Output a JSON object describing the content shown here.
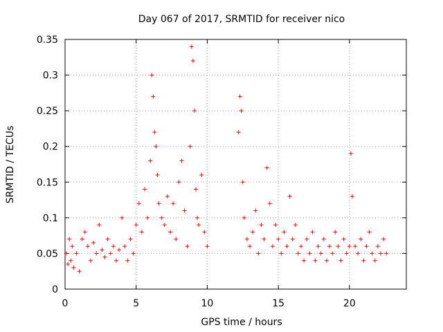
{
  "chart_data": {
    "type": "scatter",
    "title": "Day 067 of 2017, SRMTID for receiver nico",
    "xlabel": "GPS time / hours",
    "ylabel": "SRMTID / TECUs",
    "xlim": [
      0,
      24
    ],
    "ylim": [
      0,
      0.35
    ],
    "xticks": [
      0,
      5,
      10,
      15,
      20
    ],
    "xtick_labels": [
      "0",
      "5",
      "10",
      "15",
      "20"
    ],
    "yticks": [
      0,
      0.05,
      0.1,
      0.15,
      0.2,
      0.25,
      0.3,
      0.35
    ],
    "ytick_labels": [
      "0",
      "0.05",
      "0.1",
      "0.15",
      "0.2",
      "0.25",
      "0.3",
      "0.35"
    ],
    "grid": true,
    "marker": "+",
    "color": "#ff0000",
    "series": [
      {
        "name": "SRMTID",
        "x": [
          0.1,
          0.2,
          0.3,
          0.4,
          0.5,
          0.6,
          0.8,
          1.0,
          1.2,
          1.4,
          1.6,
          1.8,
          2.0,
          2.2,
          2.4,
          2.6,
          2.8,
          3.0,
          3.2,
          3.4,
          3.6,
          3.8,
          4.0,
          4.2,
          4.4,
          4.6,
          4.8,
          5.0,
          5.2,
          5.4,
          5.6,
          5.8,
          6.0,
          6.1,
          6.2,
          6.3,
          6.4,
          6.5,
          6.6,
          6.8,
          7.0,
          7.2,
          7.4,
          7.6,
          7.8,
          8.0,
          8.2,
          8.4,
          8.6,
          8.8,
          8.9,
          9.0,
          9.1,
          9.2,
          9.3,
          9.4,
          9.6,
          9.8,
          10.0,
          12.2,
          12.3,
          12.4,
          12.5,
          12.6,
          12.8,
          13.0,
          13.2,
          13.4,
          13.6,
          13.8,
          14.0,
          14.2,
          14.4,
          14.6,
          14.8,
          15.0,
          15.2,
          15.4,
          15.6,
          15.8,
          16.0,
          16.2,
          16.4,
          16.6,
          16.8,
          17.0,
          17.2,
          17.4,
          17.6,
          17.8,
          18.0,
          18.2,
          18.4,
          18.6,
          18.8,
          19.0,
          19.2,
          19.4,
          19.6,
          19.8,
          20.0,
          20.1,
          20.2,
          20.4,
          20.6,
          20.8,
          21.0,
          21.2,
          21.4,
          21.6,
          21.8,
          22.0,
          22.2,
          22.4,
          22.6
        ],
        "y": [
          0.05,
          0.035,
          0.07,
          0.04,
          0.06,
          0.03,
          0.05,
          0.025,
          0.07,
          0.08,
          0.06,
          0.04,
          0.065,
          0.05,
          0.09,
          0.055,
          0.045,
          0.07,
          0.05,
          0.06,
          0.04,
          0.055,
          0.1,
          0.06,
          0.04,
          0.07,
          0.05,
          0.09,
          0.12,
          0.08,
          0.14,
          0.1,
          0.18,
          0.3,
          0.27,
          0.22,
          0.2,
          0.16,
          0.12,
          0.1,
          0.09,
          0.13,
          0.08,
          0.12,
          0.07,
          0.15,
          0.18,
          0.11,
          0.06,
          0.2,
          0.34,
          0.32,
          0.25,
          0.14,
          0.1,
          0.09,
          0.16,
          0.08,
          0.06,
          0.22,
          0.27,
          0.25,
          0.15,
          0.1,
          0.07,
          0.06,
          0.08,
          0.11,
          0.05,
          0.09,
          0.07,
          0.17,
          0.12,
          0.06,
          0.09,
          0.07,
          0.05,
          0.08,
          0.06,
          0.13,
          0.07,
          0.09,
          0.05,
          0.06,
          0.04,
          0.07,
          0.05,
          0.08,
          0.04,
          0.06,
          0.05,
          0.07,
          0.04,
          0.06,
          0.05,
          0.08,
          0.06,
          0.04,
          0.07,
          0.05,
          0.06,
          0.19,
          0.13,
          0.06,
          0.05,
          0.07,
          0.04,
          0.06,
          0.08,
          0.05,
          0.04,
          0.06,
          0.05,
          0.07,
          0.05
        ]
      }
    ]
  }
}
